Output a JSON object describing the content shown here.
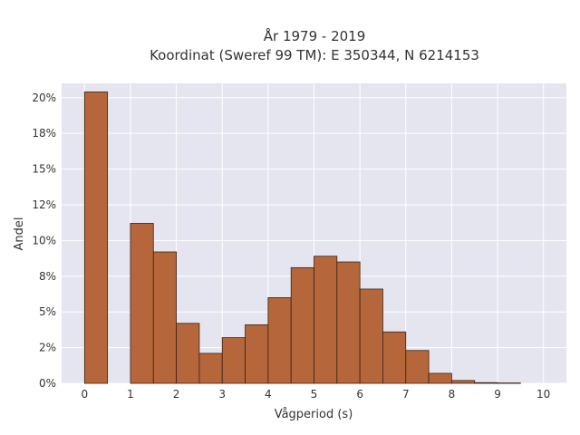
{
  "chart_data": {
    "type": "bar",
    "title_line1": "År 1979 - 2019",
    "title_line2": "Koordinat (Sweref 99 TM): E 350344, N 6214153",
    "xlabel": "Vågperiod (s)",
    "ylabel": "Andel",
    "bin_width": 0.5,
    "xlim": [
      -0.5,
      10.5
    ],
    "ylim": [
      0,
      0.21
    ],
    "x_ticks": [
      0,
      1,
      2,
      3,
      4,
      5,
      6,
      7,
      8,
      9,
      10
    ],
    "y_ticks": [
      0,
      0.025,
      0.05,
      0.075,
      0.1,
      0.125,
      0.15,
      0.175,
      0.2
    ],
    "y_tick_labels": [
      "0%",
      "2%",
      "5%",
      "8%",
      "10%",
      "12%",
      "15%",
      "18%",
      "20%"
    ],
    "bins": [
      {
        "x0": 0.0,
        "value": 0.204
      },
      {
        "x0": 1.0,
        "value": 0.112
      },
      {
        "x0": 1.5,
        "value": 0.092
      },
      {
        "x0": 2.0,
        "value": 0.042
      },
      {
        "x0": 2.5,
        "value": 0.021
      },
      {
        "x0": 3.0,
        "value": 0.032
      },
      {
        "x0": 3.5,
        "value": 0.041
      },
      {
        "x0": 4.0,
        "value": 0.06
      },
      {
        "x0": 4.5,
        "value": 0.081
      },
      {
        "x0": 5.0,
        "value": 0.089
      },
      {
        "x0": 5.5,
        "value": 0.085
      },
      {
        "x0": 6.0,
        "value": 0.066
      },
      {
        "x0": 6.5,
        "value": 0.036
      },
      {
        "x0": 7.0,
        "value": 0.023
      },
      {
        "x0": 7.5,
        "value": 0.007
      },
      {
        "x0": 8.0,
        "value": 0.002
      },
      {
        "x0": 8.5,
        "value": 0.0005
      },
      {
        "x0": 9.0,
        "value": 0.0003
      }
    ],
    "grid": true,
    "bar_color": "#b5663a",
    "bar_edge_color": "#3a2418",
    "plot_background": "#e5e5ef"
  }
}
